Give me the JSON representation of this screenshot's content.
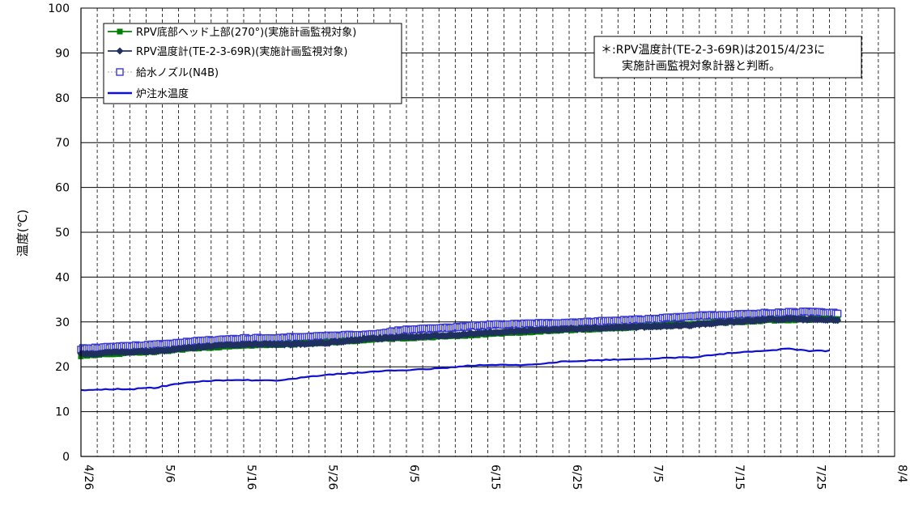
{
  "chart_data": {
    "type": "line",
    "ylabel": "温度(℃)",
    "xlabel": "",
    "ylim": [
      0,
      100
    ],
    "y_ticks": [
      0,
      10,
      20,
      30,
      40,
      50,
      60,
      70,
      80,
      90,
      100
    ],
    "x_tick_labels": [
      "4/26",
      "5/6",
      "5/16",
      "5/26",
      "6/5",
      "6/15",
      "6/25",
      "7/5",
      "7/15",
      "7/25",
      "8/4"
    ],
    "x_range_days_note": "4/26 to 8/4",
    "grid": true,
    "legend_position": "top-left",
    "note": {
      "line1": "＊:RPV温度計(TE-2-3-69R)は2015/4/23に",
      "line2": "実施計画監視対象計器と判断。"
    },
    "series": [
      {
        "name": "RPV底部ヘッド上部(270°)(実施計画監視対象)",
        "color": "#008000",
        "marker": "filled-square",
        "x": [
          "4/26",
          "5/1",
          "5/6",
          "5/11",
          "5/16",
          "5/21",
          "5/26",
          "5/31",
          "6/5",
          "6/10",
          "6/15",
          "6/20",
          "6/25",
          "6/30",
          "7/5",
          "7/10",
          "7/15",
          "7/20",
          "7/25",
          "7/28"
        ],
        "values": [
          22.5,
          23.0,
          23.5,
          24.2,
          24.8,
          25.0,
          25.4,
          26.0,
          26.4,
          26.8,
          27.3,
          27.8,
          28.2,
          28.6,
          29.0,
          29.5,
          30.0,
          30.4,
          30.6,
          30.6
        ]
      },
      {
        "name": "RPV温度計(TE-2-3-69R)(実施計画監視対象)",
        "color": "#1f2f5f",
        "marker": "filled-diamond",
        "x": [
          "4/26",
          "5/1",
          "5/6",
          "5/11",
          "5/16",
          "5/21",
          "5/26",
          "5/31",
          "6/5",
          "6/10",
          "6/15",
          "6/20",
          "6/25",
          "6/30",
          "7/5",
          "7/10",
          "7/15",
          "7/20",
          "7/25",
          "7/28"
        ],
        "values": [
          22.8,
          23.2,
          23.6,
          24.5,
          25.0,
          25.0,
          25.3,
          26.2,
          26.6,
          27.0,
          27.6,
          28.0,
          28.4,
          28.7,
          29.0,
          29.3,
          30.0,
          30.6,
          30.6,
          30.4
        ]
      },
      {
        "name": "給水ノズル(N4B)",
        "color": "#3a3ad0",
        "marker": "open-square",
        "x": [
          "4/26",
          "5/1",
          "5/6",
          "5/11",
          "5/16",
          "5/21",
          "5/26",
          "5/31",
          "6/5",
          "6/10",
          "6/15",
          "6/20",
          "6/25",
          "6/30",
          "7/5",
          "7/10",
          "7/15",
          "7/20",
          "7/25",
          "7/28"
        ],
        "values": [
          24.0,
          24.5,
          25.0,
          25.8,
          26.3,
          26.5,
          26.8,
          27.2,
          28.2,
          28.7,
          29.3,
          29.6,
          29.8,
          30.2,
          30.6,
          31.3,
          31.6,
          32.0,
          32.3,
          32.0
        ]
      },
      {
        "name": "炉注水温度",
        "color": "#1010d0",
        "marker": "none",
        "x": [
          "4/26",
          "4/29",
          "5/2",
          "5/5",
          "5/8",
          "5/11",
          "5/14",
          "5/17",
          "5/20",
          "5/23",
          "5/26",
          "5/29",
          "6/1",
          "6/4",
          "6/7",
          "6/10",
          "6/13",
          "6/16",
          "6/19",
          "6/22",
          "6/25",
          "6/28",
          "7/1",
          "7/4",
          "7/7",
          "7/10",
          "7/13",
          "7/16",
          "7/19",
          "7/22",
          "7/25",
          "7/27"
        ],
        "values": [
          14.8,
          15.0,
          15.0,
          15.3,
          16.2,
          16.8,
          17.0,
          17.0,
          17.0,
          17.5,
          18.2,
          18.5,
          18.9,
          19.2,
          19.4,
          19.8,
          20.3,
          20.4,
          20.4,
          20.8,
          21.3,
          21.4,
          21.6,
          21.8,
          22.0,
          22.1,
          22.7,
          23.3,
          23.6,
          24.0,
          23.5,
          23.6
        ]
      }
    ]
  }
}
